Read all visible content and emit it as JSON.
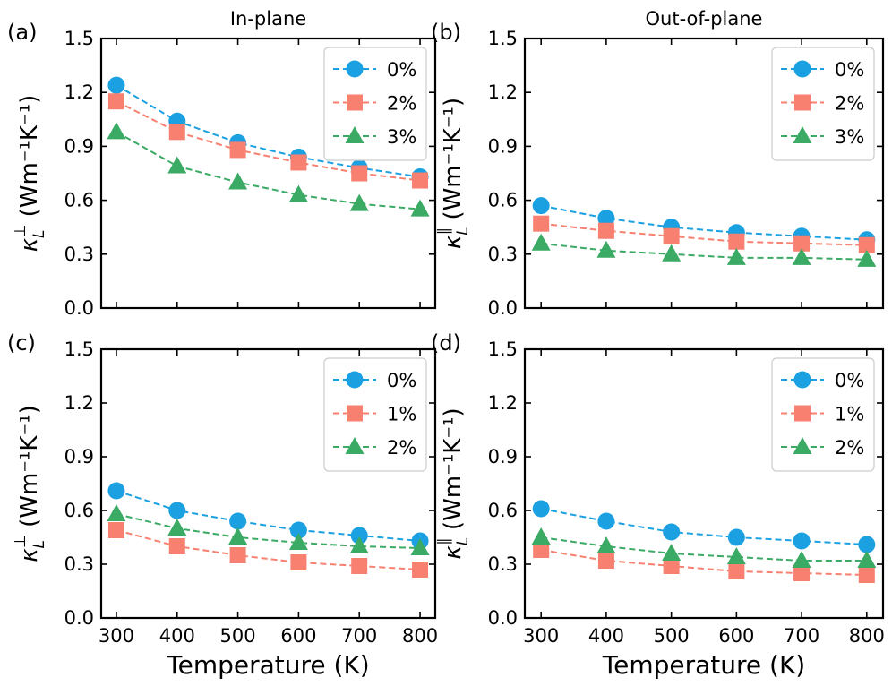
{
  "chart_data": [
    {
      "type": "line",
      "panel_label": "(a)",
      "title": "In-plane",
      "ylabel_symbol": "κ",
      "ylabel_sub": "L",
      "ylabel_sup": "⊥",
      "ylabel_units": " (Wm⁻¹K⁻¹)",
      "xlabel": "",
      "x": [
        300,
        400,
        500,
        600,
        700,
        800
      ],
      "xlim": [
        275,
        825
      ],
      "ylim": [
        0.0,
        1.5
      ],
      "yticks": [
        "0.0",
        "0.3",
        "0.6",
        "0.9",
        "1.2",
        "1.5"
      ],
      "xticks": [],
      "legend_position": "top-right",
      "series": [
        {
          "name": "0%",
          "marker": "circle",
          "color": "#1ba1e2",
          "values": [
            1.24,
            1.04,
            0.92,
            0.84,
            0.78,
            0.73
          ]
        },
        {
          "name": "2%",
          "marker": "square",
          "color": "#f78070",
          "values": [
            1.15,
            0.98,
            0.88,
            0.81,
            0.75,
            0.71
          ]
        },
        {
          "name": "3%",
          "marker": "triangle",
          "color": "#3aaa64",
          "values": [
            0.98,
            0.79,
            0.7,
            0.63,
            0.58,
            0.55
          ]
        }
      ]
    },
    {
      "type": "line",
      "panel_label": "(b)",
      "title": "Out-of-plane",
      "ylabel_symbol": "κ",
      "ylabel_sub": "L",
      "ylabel_sup": "∥",
      "ylabel_units": " (Wm⁻¹K⁻¹)",
      "xlabel": "",
      "x": [
        300,
        400,
        500,
        600,
        700,
        800
      ],
      "xlim": [
        275,
        825
      ],
      "ylim": [
        0.0,
        1.5
      ],
      "yticks": [
        "0.0",
        "0.3",
        "0.6",
        "0.9",
        "1.2",
        "1.5"
      ],
      "xticks": [],
      "legend_position": "top-right",
      "series": [
        {
          "name": "0%",
          "marker": "circle",
          "color": "#1ba1e2",
          "values": [
            0.57,
            0.5,
            0.45,
            0.42,
            0.4,
            0.38
          ]
        },
        {
          "name": "2%",
          "marker": "square",
          "color": "#f78070",
          "values": [
            0.47,
            0.43,
            0.4,
            0.37,
            0.36,
            0.35
          ]
        },
        {
          "name": "3%",
          "marker": "triangle",
          "color": "#3aaa64",
          "values": [
            0.36,
            0.32,
            0.3,
            0.28,
            0.28,
            0.27
          ]
        }
      ]
    },
    {
      "type": "line",
      "panel_label": "(c)",
      "title": "",
      "ylabel_symbol": "κ",
      "ylabel_sub": "L",
      "ylabel_sup": "⊥",
      "ylabel_units": " (Wm⁻¹K⁻¹)",
      "xlabel": "Temperature (K)",
      "x": [
        300,
        400,
        500,
        600,
        700,
        800
      ],
      "xlim": [
        275,
        825
      ],
      "ylim": [
        0.0,
        1.5
      ],
      "yticks": [
        "0.0",
        "0.3",
        "0.6",
        "0.9",
        "1.2",
        "1.5"
      ],
      "xticks": [
        "300",
        "400",
        "500",
        "600",
        "700",
        "800"
      ],
      "legend_position": "top-right",
      "series": [
        {
          "name": "0%",
          "marker": "circle",
          "color": "#1ba1e2",
          "values": [
            0.71,
            0.6,
            0.54,
            0.49,
            0.46,
            0.43
          ]
        },
        {
          "name": "1%",
          "marker": "square",
          "color": "#f78070",
          "values": [
            0.49,
            0.4,
            0.35,
            0.31,
            0.29,
            0.27
          ]
        },
        {
          "name": "2%",
          "marker": "triangle",
          "color": "#3aaa64",
          "values": [
            0.58,
            0.5,
            0.45,
            0.42,
            0.4,
            0.39
          ]
        }
      ]
    },
    {
      "type": "line",
      "panel_label": "(d)",
      "title": "",
      "ylabel_symbol": "κ",
      "ylabel_sub": "L",
      "ylabel_sup": "∥",
      "ylabel_units": " (Wm⁻¹K⁻¹)",
      "xlabel": "Temperature (K)",
      "x": [
        300,
        400,
        500,
        600,
        700,
        800
      ],
      "xlim": [
        275,
        825
      ],
      "ylim": [
        0.0,
        1.5
      ],
      "yticks": [
        "0.0",
        "0.3",
        "0.6",
        "0.9",
        "1.2",
        "1.5"
      ],
      "xticks": [
        "300",
        "400",
        "500",
        "600",
        "700",
        "800"
      ],
      "legend_position": "top-right",
      "series": [
        {
          "name": "0%",
          "marker": "circle",
          "color": "#1ba1e2",
          "values": [
            0.61,
            0.54,
            0.48,
            0.45,
            0.43,
            0.41
          ]
        },
        {
          "name": "1%",
          "marker": "square",
          "color": "#f78070",
          "values": [
            0.38,
            0.32,
            0.29,
            0.26,
            0.25,
            0.24
          ]
        },
        {
          "name": "2%",
          "marker": "triangle",
          "color": "#3aaa64",
          "values": [
            0.45,
            0.4,
            0.36,
            0.34,
            0.32,
            0.32
          ]
        }
      ]
    }
  ]
}
